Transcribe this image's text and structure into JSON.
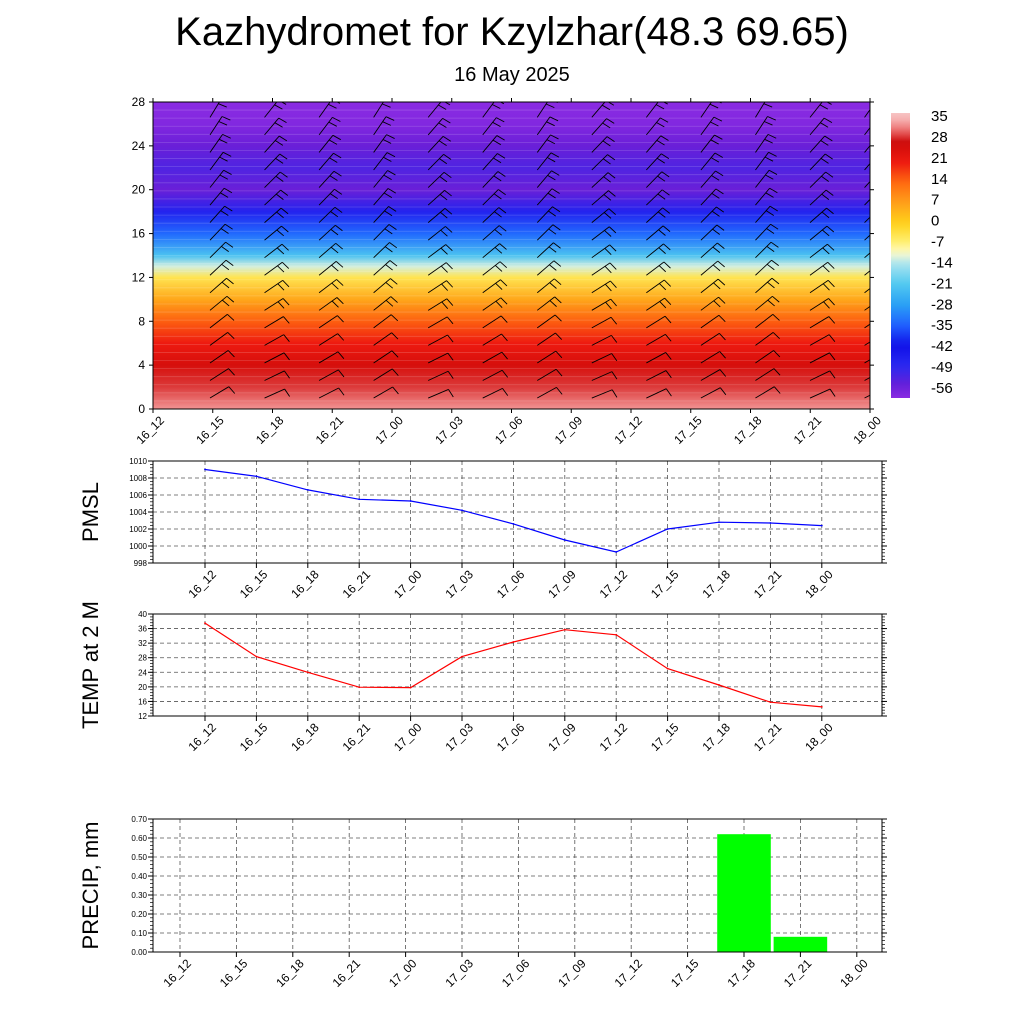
{
  "title": "Kazhydromet for Kzylzhar(48.3 69.65)",
  "subtitle": "16 May 2025",
  "chart_data": [
    {
      "type": "heatmap",
      "name": "vertical cross-section temperature with wind barbs",
      "x_ticks": [
        "16_12",
        "16_15",
        "16_18",
        "16_21",
        "17_00",
        "17_03",
        "17_06",
        "17_09",
        "17_12",
        "17_15",
        "17_18",
        "17_21",
        "18_00"
      ],
      "y_ticks": [
        "0",
        "4",
        "8",
        "12",
        "16",
        "20",
        "24",
        "28"
      ],
      "ylim": [
        0,
        28
      ],
      "colorbar_labels": [
        "35",
        "28",
        "21",
        "14",
        "7",
        "0",
        "-7",
        "-14",
        "-21",
        "-28",
        "-35",
        "-42",
        "-49",
        "-56"
      ],
      "colorbar_range": [
        -60,
        38
      ],
      "temperature_profile": [
        {
          "h": 0,
          "t": 34
        },
        {
          "h": 2,
          "t": 30
        },
        {
          "h": 4,
          "t": 26
        },
        {
          "h": 6,
          "t": 21
        },
        {
          "h": 8,
          "t": 15
        },
        {
          "h": 10,
          "t": 6
        },
        {
          "h": 12,
          "t": -4
        },
        {
          "h": 13,
          "t": -12
        },
        {
          "h": 14,
          "t": -22
        },
        {
          "h": 16,
          "t": -34
        },
        {
          "h": 18,
          "t": -47
        },
        {
          "h": 20,
          "t": -56
        },
        {
          "h": 22,
          "t": -53
        },
        {
          "h": 24,
          "t": -56
        },
        {
          "h": 26,
          "t": -59
        },
        {
          "h": 28,
          "t": -60
        }
      ],
      "grid": false
    },
    {
      "type": "line",
      "ylabel": "PMSL",
      "categories": [
        "16_12",
        "16_15",
        "16_18",
        "16_21",
        "17_00",
        "17_03",
        "17_06",
        "17_09",
        "17_12",
        "17_15",
        "17_18",
        "17_21",
        "18_00"
      ],
      "values": [
        1009.0,
        1008.2,
        1006.6,
        1005.5,
        1005.3,
        1004.2,
        1002.6,
        1000.7,
        999.3,
        1002.0,
        1002.8,
        1002.7,
        1002.4
      ],
      "yticks": [
        "998",
        "1000",
        "1002",
        "1004",
        "1006",
        "1008",
        "1010"
      ],
      "ylim": [
        998,
        1010
      ],
      "color": "#0000ff",
      "grid": true
    },
    {
      "type": "line",
      "ylabel": "TEMP at 2 M",
      "categories": [
        "16_12",
        "16_15",
        "16_18",
        "16_21",
        "17_00",
        "17_03",
        "17_06",
        "17_09",
        "17_12",
        "17_15",
        "17_18",
        "17_21",
        "18_00"
      ],
      "values": [
        37.5,
        28.3,
        24.0,
        19.9,
        19.8,
        28.3,
        32.3,
        35.7,
        34.3,
        25.0,
        20.5,
        15.8,
        14.5
      ],
      "yticks": [
        "12",
        "16",
        "20",
        "24",
        "28",
        "32",
        "36",
        "40"
      ],
      "ylim": [
        12,
        40
      ],
      "color": "#ff0000",
      "grid": true
    },
    {
      "type": "bar",
      "ylabel": "PRECIP, mm",
      "categories": [
        "16_12",
        "16_15",
        "16_18",
        "16_21",
        "17_00",
        "17_03",
        "17_06",
        "17_09",
        "17_12",
        "17_15",
        "17_18",
        "17_21",
        "18_00"
      ],
      "values": [
        0,
        0,
        0,
        0,
        0,
        0,
        0,
        0,
        0,
        0,
        0.62,
        0.08,
        0
      ],
      "yticks": [
        "0.00",
        "0.10",
        "0.20",
        "0.30",
        "0.40",
        "0.50",
        "0.60",
        "0.70"
      ],
      "ylim": [
        0,
        0.7
      ],
      "color": "#00ff00",
      "grid": true
    }
  ]
}
